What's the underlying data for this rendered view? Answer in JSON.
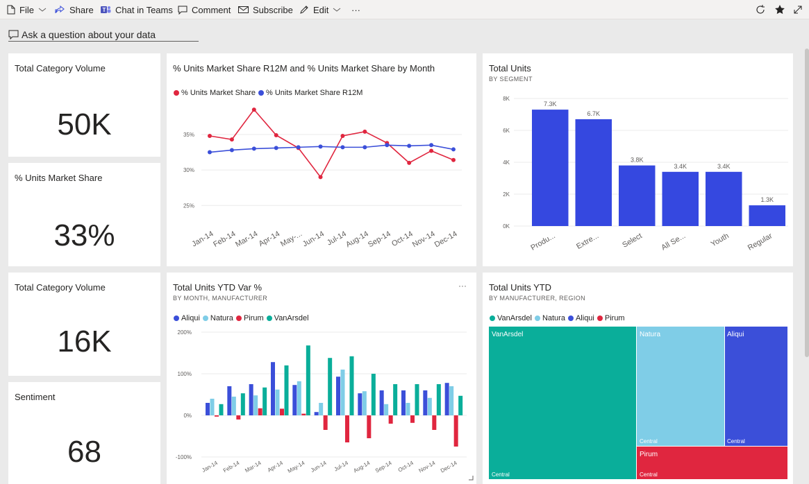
{
  "toolbar": {
    "file": "File",
    "share": "Share",
    "chat": "Chat in Teams",
    "comment": "Comment",
    "subscribe": "Subscribe",
    "edit": "Edit",
    "more": "···"
  },
  "qa": {
    "label": "Ask a question about your data"
  },
  "cards": [
    {
      "title": "Total Category Volume",
      "value": "50K"
    },
    {
      "title": "% Units Market Share",
      "value": "33%"
    },
    {
      "title": "Total Category Volume",
      "value": "16K"
    },
    {
      "title": "Sentiment",
      "value": "68"
    }
  ],
  "line_tile": {
    "title": "% Units Market Share R12M and % Units Market Share by Month"
  },
  "bar_tile": {
    "title": "Total Units",
    "subtitle": "BY SEGMENT"
  },
  "cluster_tile": {
    "title": "Total Units YTD Var %",
    "subtitle": "BY MONTH, MANUFACTURER",
    "more": "···"
  },
  "treemap_tile": {
    "title": "Total Units YTD",
    "subtitle": "BY MANUFACTURER, REGION"
  },
  "colors": {
    "red": "#e0263f",
    "blue": "#3b4fd9",
    "light_blue": "#7fcde7",
    "teal": "#0aae9a",
    "bar_blue": "#3548e0"
  },
  "chart_data": [
    {
      "type": "line",
      "title": "% Units Market Share R12M and % Units Market Share by Month",
      "categories": [
        "Jan-14",
        "Feb-14",
        "Mar-14",
        "Apr-14",
        "May-...",
        "Jun-14",
        "Jul-14",
        "Aug-14",
        "Sep-14",
        "Oct-14",
        "Nov-14",
        "Dec-14"
      ],
      "series": [
        {
          "name": "% Units Market Share",
          "values": [
            34.8,
            34.3,
            38.5,
            34.9,
            33.1,
            29.0,
            34.8,
            35.4,
            33.8,
            31.0,
            32.7,
            31.4
          ]
        },
        {
          "name": "% Units Market Share R12M",
          "values": [
            32.5,
            32.8,
            33.0,
            33.1,
            33.2,
            33.3,
            33.2,
            33.2,
            33.5,
            33.4,
            33.5,
            32.9
          ]
        }
      ],
      "y_ticks": [
        "25%",
        "30%",
        "35%"
      ],
      "ylim": [
        22,
        39
      ],
      "legend": "top-left"
    },
    {
      "type": "bar",
      "title": "Total Units",
      "subtitle": "BY SEGMENT",
      "categories": [
        "Produ...",
        "Extre...",
        "Select",
        "All Se...",
        "Youth",
        "Regular"
      ],
      "values": [
        7300,
        6700,
        3800,
        3400,
        3400,
        1300
      ],
      "data_labels": [
        "7.3K",
        "6.7K",
        "3.8K",
        "3.4K",
        "3.4K",
        "1.3K"
      ],
      "y_ticks": [
        "0K",
        "2K",
        "4K",
        "6K",
        "8K"
      ],
      "ylim": [
        0,
        8000
      ]
    },
    {
      "type": "bar",
      "title": "Total Units YTD Var %",
      "subtitle": "BY MONTH, MANUFACTURER",
      "categories": [
        "Jan-14",
        "Feb-14",
        "Mar-14",
        "Apr-14",
        "May-14",
        "Jun-14",
        "Jul-14",
        "Aug-14",
        "Sep-14",
        "Oct-14",
        "Nov-14",
        "Dec-14"
      ],
      "series": [
        {
          "name": "Aliqui",
          "values": [
            30,
            70,
            75,
            128,
            73,
            8,
            93,
            53,
            60,
            60,
            60,
            78
          ]
        },
        {
          "name": "Natura",
          "values": [
            40,
            45,
            48,
            62,
            82,
            30,
            110,
            58,
            27,
            30,
            42,
            70
          ]
        },
        {
          "name": "Pirum",
          "values": [
            -3,
            -10,
            17,
            16,
            4,
            -35,
            -65,
            -55,
            -20,
            -18,
            -35,
            -75
          ]
        },
        {
          "name": "VanArsdel",
          "values": [
            27,
            53,
            67,
            120,
            168,
            138,
            142,
            100,
            75,
            75,
            75,
            47
          ]
        }
      ],
      "y_ticks": [
        "-100%",
        "0%",
        "100%",
        "200%"
      ],
      "ylim": [
        -100,
        200
      ],
      "legend": "top-left"
    },
    {
      "type": "treemap",
      "title": "Total Units YTD",
      "subtitle": "BY MANUFACTURER, REGION",
      "series": [
        {
          "name": "VanArsdel",
          "children": [
            {
              "name": "Central"
            }
          ]
        },
        {
          "name": "Natura",
          "children": [
            {
              "name": "Central"
            }
          ]
        },
        {
          "name": "Aliqui",
          "children": [
            {
              "name": "Central"
            }
          ]
        },
        {
          "name": "Pirum",
          "children": [
            {
              "name": "Central"
            }
          ]
        }
      ],
      "legend": "top-left"
    }
  ]
}
